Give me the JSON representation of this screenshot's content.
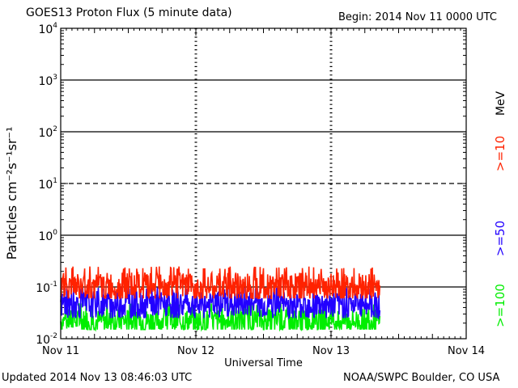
{
  "header": {
    "title": "GOES13 Proton Flux (5 minute data)",
    "begin": "Begin: 2014 Nov 11 0000 UTC"
  },
  "footer": {
    "updated": "Updated 2014 Nov 13 08:46:03 UTC",
    "credit": "NOAA/SWPC Boulder, CO USA"
  },
  "chart_data": {
    "type": "line",
    "xlabel": "Universal Time",
    "ylabel": "Particles cm⁻²s⁻¹sr⁻¹",
    "y_scale": "log",
    "ylim": [
      0.01,
      10000
    ],
    "y_ticks": [
      {
        "base": "10",
        "exp": "4",
        "value": 10000
      },
      {
        "base": "10",
        "exp": "3",
        "value": 1000
      },
      {
        "base": "10",
        "exp": "2",
        "value": 100
      },
      {
        "base": "10",
        "exp": "1",
        "value": 10
      },
      {
        "base": "10",
        "exp": "0",
        "value": 1
      },
      {
        "base": "10",
        "exp": "-1",
        "value": 0.1
      },
      {
        "base": "10",
        "exp": "-2",
        "value": 0.01
      }
    ],
    "x_ticks": [
      "Nov 11",
      "Nov 12",
      "Nov 13",
      "Nov 14"
    ],
    "xlim_days": [
      0,
      3
    ],
    "data_end_days": 2.36,
    "grid": "horizontal solid lines per decade, dashed at 10^1",
    "threshold_line": 10,
    "series": [
      {
        "name": ">=10",
        "color": "#ff2200",
        "baseline": 0.1,
        "typical_range": [
          0.06,
          0.25
        ]
      },
      {
        "name": ">=50",
        "color": "#2200ff",
        "baseline": 0.045,
        "typical_range": [
          0.025,
          0.1
        ]
      },
      {
        "name": ">=100",
        "color": "#00ee00",
        "baseline": 0.022,
        "typical_range": [
          0.015,
          0.05
        ]
      }
    ],
    "legend_unit": "MeV"
  }
}
